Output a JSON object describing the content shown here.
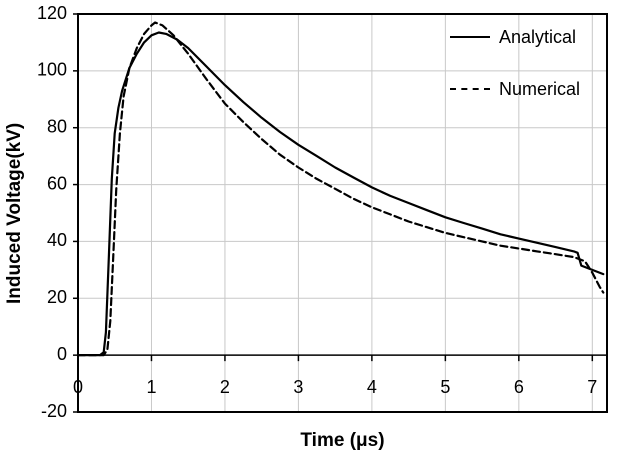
{
  "chart_data": {
    "type": "line",
    "title": "",
    "xlabel": "Time (μs)",
    "ylabel": "Induced Voltage(kV)",
    "xlim": [
      0,
      7.2
    ],
    "ylim": [
      -20,
      120
    ],
    "xticks": [
      0,
      1,
      2,
      3,
      4,
      5,
      6,
      7
    ],
    "yticks": [
      -20,
      0,
      20,
      40,
      60,
      80,
      100,
      120
    ],
    "grid": true,
    "grid_color": "#c8c8c8",
    "axis_color": "#000000",
    "legend_position": "top-right",
    "series": [
      {
        "name": "Analytical",
        "style": "solid",
        "color": "#000000",
        "x": [
          0,
          0.3,
          0.35,
          0.38,
          0.42,
          0.46,
          0.5,
          0.55,
          0.6,
          0.7,
          0.8,
          0.9,
          1.0,
          1.1,
          1.2,
          1.35,
          1.5,
          1.75,
          2.0,
          2.25,
          2.5,
          2.75,
          3.0,
          3.25,
          3.5,
          3.75,
          4.0,
          4.25,
          4.5,
          4.75,
          5.0,
          5.25,
          5.5,
          5.75,
          6.0,
          6.25,
          6.5,
          6.75,
          6.8,
          6.85,
          7.0,
          7.15
        ],
        "y": [
          0,
          0,
          1,
          8,
          35,
          62,
          78,
          87,
          93,
          101,
          106,
          110,
          112.5,
          113.5,
          113,
          111,
          108,
          101.5,
          95,
          89,
          83.5,
          78.5,
          74,
          70,
          66,
          62.5,
          59,
          56,
          53.5,
          51,
          48.5,
          46.5,
          44.5,
          42.5,
          41,
          39.5,
          38,
          36.5,
          36,
          31.5,
          30,
          28.5
        ]
      },
      {
        "name": "Numerical",
        "style": "dashed",
        "color": "#000000",
        "x": [
          0,
          0.35,
          0.4,
          0.44,
          0.48,
          0.52,
          0.57,
          0.62,
          0.7,
          0.8,
          0.9,
          1.0,
          1.05,
          1.15,
          1.3,
          1.5,
          1.75,
          2.0,
          2.25,
          2.5,
          2.75,
          3.0,
          3.25,
          3.5,
          3.75,
          4.0,
          4.25,
          4.5,
          4.75,
          5.0,
          5.25,
          5.5,
          5.75,
          6.0,
          6.25,
          6.5,
          6.75,
          6.9,
          7.0,
          7.1,
          7.15
        ],
        "y": [
          0,
          0,
          2,
          12,
          35,
          58,
          78,
          91,
          101,
          108,
          113,
          116,
          117,
          116,
          112.5,
          106,
          97,
          88.5,
          82,
          76,
          70.5,
          66,
          62,
          58.5,
          55,
          52,
          49.5,
          47,
          45,
          43,
          41.5,
          40,
          38.5,
          37.5,
          36.5,
          35.5,
          34.5,
          33,
          29,
          24,
          22
        ]
      }
    ]
  }
}
